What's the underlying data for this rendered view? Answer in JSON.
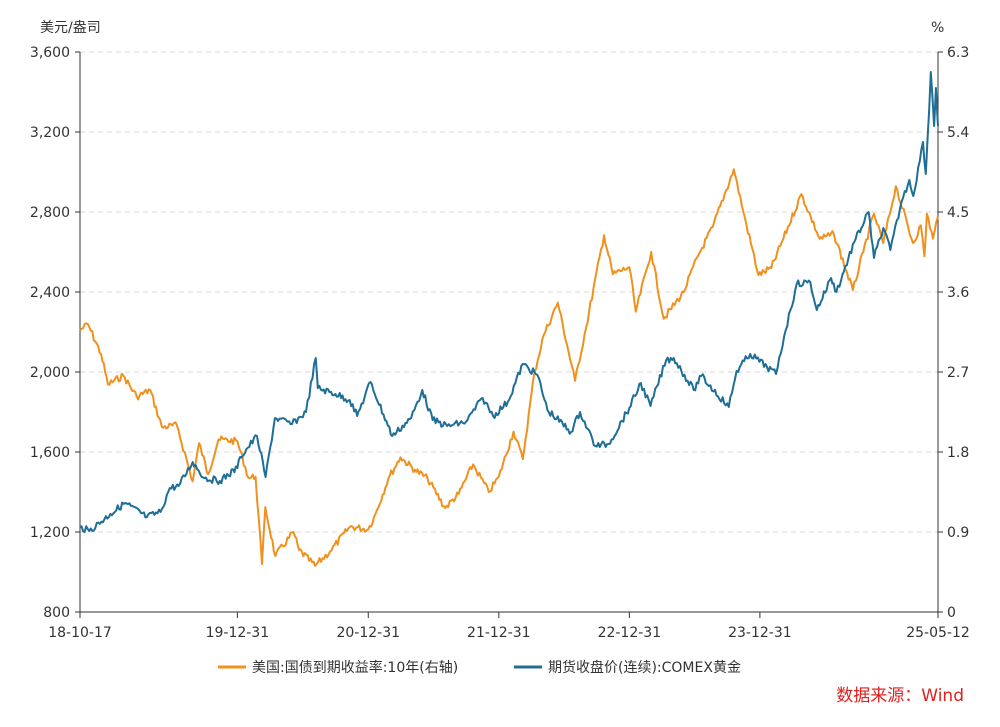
{
  "chart_data": {
    "type": "line",
    "left_unit": "美元/盎司",
    "right_unit": "%",
    "left_ylim": [
      800,
      3600
    ],
    "left_ticks": [
      "800",
      "1,200",
      "1,600",
      "2,000",
      "2,400",
      "2,800",
      "3,200",
      "3,600"
    ],
    "right_ylim": [
      0,
      6.3
    ],
    "right_ticks": [
      "0",
      "0.9",
      "1.8",
      "2.7",
      "3.6",
      "4.5",
      "5.4",
      "6.3"
    ],
    "x_range": [
      "2018-10-17",
      "2025-05-12"
    ],
    "x_ticks": [
      {
        "date": "2018-10-17",
        "label": "18-10-17"
      },
      {
        "date": "2019-12-31",
        "label": "19-12-31"
      },
      {
        "date": "2020-12-31",
        "label": "20-12-31"
      },
      {
        "date": "2021-12-31",
        "label": "21-12-31"
      },
      {
        "date": "2022-12-31",
        "label": "22-12-31"
      },
      {
        "date": "2023-12-31",
        "label": "23-12-31"
      },
      {
        "date": "2025-05-12",
        "label": "25-05-12"
      }
    ],
    "grid": "horizontal dashed",
    "legend_position": "bottom",
    "source": "数据来源：Wind",
    "series": [
      {
        "name": "美国:国债到期收益率:10年(右轴)",
        "axis": "right",
        "color": "#f0911f",
        "points": [
          [
            "2018-10-17",
            3.17
          ],
          [
            "2018-11-08",
            3.24
          ],
          [
            "2018-12-15",
            2.9
          ],
          [
            "2019-01-03",
            2.56
          ],
          [
            "2019-02-15",
            2.66
          ],
          [
            "2019-03-25",
            2.42
          ],
          [
            "2019-05-01",
            2.5
          ],
          [
            "2019-06-03",
            2.08
          ],
          [
            "2019-07-15",
            2.1
          ],
          [
            "2019-08-28",
            1.47
          ],
          [
            "2019-09-15",
            1.9
          ],
          [
            "2019-10-10",
            1.55
          ],
          [
            "2019-11-08",
            1.94
          ],
          [
            "2019-12-31",
            1.92
          ],
          [
            "2020-01-31",
            1.51
          ],
          [
            "2020-02-20",
            1.52
          ],
          [
            "2020-03-09",
            0.54
          ],
          [
            "2020-03-18",
            1.18
          ],
          [
            "2020-04-15",
            0.63
          ],
          [
            "2020-06-05",
            0.9
          ],
          [
            "2020-06-20",
            0.7
          ],
          [
            "2020-08-04",
            0.52
          ],
          [
            "2020-09-15",
            0.68
          ],
          [
            "2020-11-10",
            0.96
          ],
          [
            "2020-12-31",
            0.93
          ],
          [
            "2021-01-20",
            1.1
          ],
          [
            "2021-02-25",
            1.5
          ],
          [
            "2021-03-31",
            1.74
          ],
          [
            "2021-05-10",
            1.6
          ],
          [
            "2021-06-15",
            1.5
          ],
          [
            "2021-08-03",
            1.17
          ],
          [
            "2021-09-10",
            1.33
          ],
          [
            "2021-10-20",
            1.66
          ],
          [
            "2021-12-03",
            1.35
          ],
          [
            "2021-12-31",
            1.52
          ],
          [
            "2022-02-10",
            2.03
          ],
          [
            "2022-03-08",
            1.72
          ],
          [
            "2022-04-10",
            2.7
          ],
          [
            "2022-05-06",
            3.12
          ],
          [
            "2022-06-14",
            3.48
          ],
          [
            "2022-08-01",
            2.6
          ],
          [
            "2022-09-01",
            3.2
          ],
          [
            "2022-10-21",
            4.24
          ],
          [
            "2022-11-15",
            3.8
          ],
          [
            "2022-12-31",
            3.88
          ],
          [
            "2023-01-18",
            3.38
          ],
          [
            "2023-03-02",
            4.05
          ],
          [
            "2023-04-06",
            3.3
          ],
          [
            "2023-06-01",
            3.6
          ],
          [
            "2023-07-10",
            4.0
          ],
          [
            "2023-08-21",
            4.33
          ],
          [
            "2023-10-19",
            4.98
          ],
          [
            "2023-11-15",
            4.5
          ],
          [
            "2023-12-27",
            3.79
          ],
          [
            "2024-02-01",
            3.87
          ],
          [
            "2024-04-25",
            4.7
          ],
          [
            "2024-06-15",
            4.2
          ],
          [
            "2024-07-25",
            4.25
          ],
          [
            "2024-09-16",
            3.62
          ],
          [
            "2024-10-15",
            4.05
          ],
          [
            "2024-11-14",
            4.48
          ],
          [
            "2024-12-10",
            4.15
          ],
          [
            "2025-01-14",
            4.79
          ],
          [
            "2025-03-03",
            4.15
          ],
          [
            "2025-03-25",
            4.35
          ],
          [
            "2025-04-04",
            4.0
          ],
          [
            "2025-04-11",
            4.48
          ],
          [
            "2025-04-28",
            4.2
          ],
          [
            "2025-05-12",
            4.45
          ]
        ]
      },
      {
        "name": "期货收盘价(连续):COMEX黄金",
        "axis": "left",
        "color": "#1f6e96",
        "points": [
          [
            "2018-10-17",
            1225
          ],
          [
            "2018-11-12",
            1205
          ],
          [
            "2019-01-10",
            1290
          ],
          [
            "2019-02-20",
            1345
          ],
          [
            "2019-04-22",
            1275
          ],
          [
            "2019-05-30",
            1300
          ],
          [
            "2019-06-25",
            1420
          ],
          [
            "2019-07-20",
            1430
          ],
          [
            "2019-08-28",
            1550
          ],
          [
            "2019-09-30",
            1470
          ],
          [
            "2019-11-12",
            1455
          ],
          [
            "2019-12-31",
            1520
          ],
          [
            "2020-01-08",
            1575
          ],
          [
            "2020-02-24",
            1680
          ],
          [
            "2020-03-19",
            1475
          ],
          [
            "2020-04-14",
            1770
          ],
          [
            "2020-06-01",
            1740
          ],
          [
            "2020-07-10",
            1800
          ],
          [
            "2020-08-06",
            2070
          ],
          [
            "2020-08-12",
            1920
          ],
          [
            "2020-09-30",
            1890
          ],
          [
            "2020-11-09",
            1860
          ],
          [
            "2020-11-30",
            1780
          ],
          [
            "2021-01-06",
            1950
          ],
          [
            "2021-03-08",
            1680
          ],
          [
            "2021-04-30",
            1770
          ],
          [
            "2021-05-31",
            1910
          ],
          [
            "2021-06-29",
            1760
          ],
          [
            "2021-08-09",
            1730
          ],
          [
            "2021-09-30",
            1750
          ],
          [
            "2021-11-16",
            1870
          ],
          [
            "2021-12-15",
            1780
          ],
          [
            "2022-01-25",
            1850
          ],
          [
            "2022-03-08",
            2040
          ],
          [
            "2022-04-18",
            1985
          ],
          [
            "2022-05-16",
            1810
          ],
          [
            "2022-07-21",
            1700
          ],
          [
            "2022-08-15",
            1800
          ],
          [
            "2022-09-27",
            1630
          ],
          [
            "2022-11-03",
            1640
          ],
          [
            "2022-12-31",
            1820
          ],
          [
            "2023-02-01",
            1945
          ],
          [
            "2023-02-28",
            1830
          ],
          [
            "2023-04-13",
            2060
          ],
          [
            "2023-05-04",
            2070
          ],
          [
            "2023-06-29",
            1910
          ],
          [
            "2023-07-20",
            1980
          ],
          [
            "2023-10-05",
            1825
          ],
          [
            "2023-10-27",
            2005
          ],
          [
            "2023-12-04",
            2090
          ],
          [
            "2024-01-20",
            2025
          ],
          [
            "2024-02-14",
            1990
          ],
          [
            "2024-03-08",
            2180
          ],
          [
            "2024-04-12",
            2440
          ],
          [
            "2024-05-20",
            2450
          ],
          [
            "2024-06-07",
            2310
          ],
          [
            "2024-07-17",
            2470
          ],
          [
            "2024-08-01",
            2400
          ],
          [
            "2024-09-20",
            2650
          ],
          [
            "2024-10-30",
            2800
          ],
          [
            "2024-11-14",
            2570
          ],
          [
            "2024-12-10",
            2720
          ],
          [
            "2024-12-30",
            2610
          ],
          [
            "2025-01-30",
            2850
          ],
          [
            "2025-02-21",
            2960
          ],
          [
            "2025-03-04",
            2880
          ],
          [
            "2025-03-31",
            3150
          ],
          [
            "2025-04-08",
            2990
          ],
          [
            "2025-04-22",
            3500
          ],
          [
            "2025-05-01",
            3230
          ],
          [
            "2025-05-06",
            3420
          ],
          [
            "2025-05-12",
            3230
          ]
        ]
      }
    ]
  }
}
